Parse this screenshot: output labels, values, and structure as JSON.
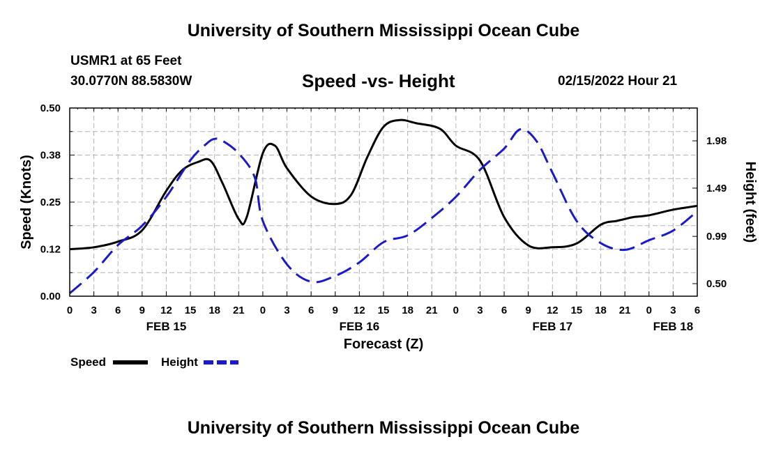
{
  "header": {
    "title": "University of Southern Mississippi Ocean Cube",
    "station": "USMR1 at 65 Feet",
    "coords": "30.0770N  88.5830W",
    "chart_title": "Speed -vs- Height",
    "date": "02/15/2022 Hour 21"
  },
  "footer": {
    "title": "University of Southern Mississippi Ocean Cube"
  },
  "colors": {
    "speed": "#000000",
    "height": "#1a1acc",
    "grid": "#b4b4b4"
  },
  "chart_data": {
    "type": "line",
    "title": "Speed -vs- Height",
    "xlabel": "Forecast (Z)",
    "ylabel": "Speed (Knots)",
    "y2label": "Height (feet)",
    "x_hours_range": [
      0,
      78
    ],
    "x_ticks": [
      "0",
      "3",
      "6",
      "9",
      "12",
      "15",
      "18",
      "21",
      "0",
      "3",
      "6",
      "9",
      "12",
      "15",
      "18",
      "21",
      "0",
      "3",
      "6",
      "9",
      "12",
      "15",
      "18",
      "21",
      "0",
      "3",
      "6"
    ],
    "date_labels": [
      {
        "label": "FEB 15",
        "hour": 12
      },
      {
        "label": "FEB 16",
        "hour": 36
      },
      {
        "label": "FEB 17",
        "hour": 60
      },
      {
        "label": "FEB 18",
        "hour": 75
      }
    ],
    "ylim": [
      0,
      0.5
    ],
    "y_ticks": [
      "0.00",
      "0.12",
      "0.25",
      "0.38",
      "0.50"
    ],
    "y2lim": [
      0.37,
      2.32
    ],
    "y2_ticks": [
      "0.50",
      "0.99",
      "1.49",
      "1.98"
    ],
    "legend": [
      {
        "name": "Speed",
        "style": "solid"
      },
      {
        "name": "Height",
        "style": "dashed"
      }
    ],
    "series": [
      {
        "name": "Speed",
        "axis": "left",
        "style": "solid",
        "x": [
          0,
          3,
          6,
          9,
          12,
          14,
          16,
          17.5,
          19,
          21,
          22,
          24,
          25.5,
          27,
          30,
          33,
          35,
          37,
          39,
          41,
          43,
          46,
          48,
          51,
          54,
          57,
          60,
          63,
          66,
          68,
          69,
          70,
          72,
          75,
          78
        ],
        "values": [
          0.125,
          0.13,
          0.145,
          0.175,
          0.28,
          0.335,
          0.357,
          0.36,
          0.3,
          0.205,
          0.21,
          0.38,
          0.4,
          0.34,
          0.265,
          0.245,
          0.27,
          0.37,
          0.45,
          0.468,
          0.46,
          0.445,
          0.4,
          0.36,
          0.21,
          0.135,
          0.13,
          0.14,
          0.19,
          0.2,
          0.205,
          0.21,
          0.215,
          0.23,
          0.24
        ]
      },
      {
        "name": "Height",
        "axis": "right",
        "style": "dashed",
        "x": [
          0,
          3,
          6,
          9,
          12,
          15,
          17,
          18,
          19,
          21,
          23,
          24,
          27,
          30,
          33,
          36,
          39,
          42,
          45,
          48,
          51,
          54,
          56,
          58,
          60,
          63,
          66,
          69,
          72,
          75,
          78
        ],
        "values": [
          0.4,
          0.62,
          0.9,
          1.1,
          1.4,
          1.78,
          1.95,
          2.0,
          1.98,
          1.85,
          1.6,
          1.15,
          0.7,
          0.52,
          0.58,
          0.72,
          0.93,
          1.0,
          1.18,
          1.4,
          1.68,
          1.9,
          2.1,
          1.98,
          1.65,
          1.15,
          0.92,
          0.85,
          0.95,
          1.05,
          1.25
        ]
      }
    ]
  }
}
